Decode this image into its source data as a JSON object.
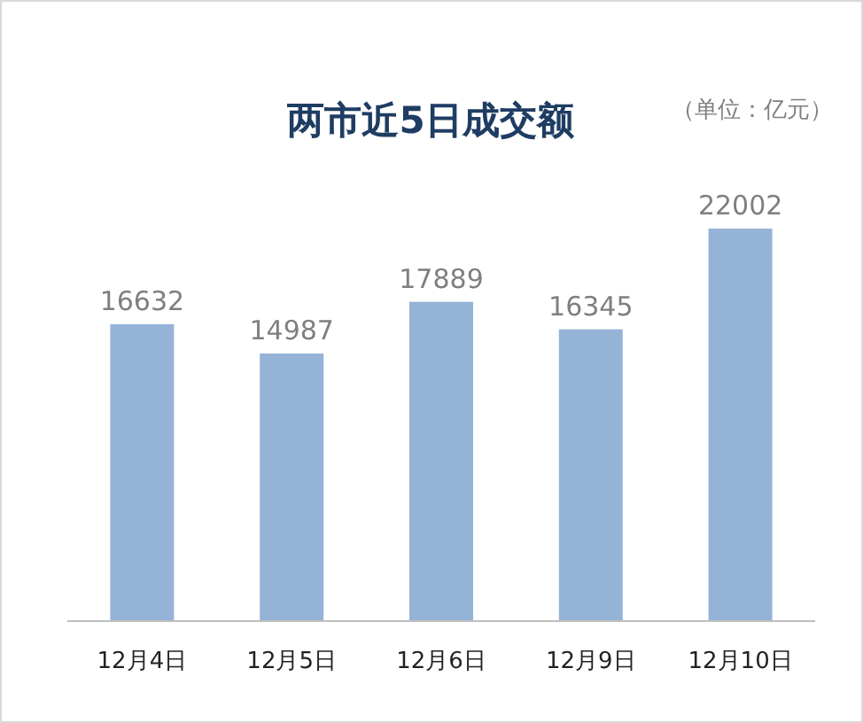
{
  "chart_data": {
    "type": "bar",
    "title": "两市近5日成交额",
    "annotations": [
      "（单位：亿元）"
    ],
    "categories": [
      "12月4日",
      "12月5日",
      "12月6日",
      "12月9日",
      "12月10日"
    ],
    "values": [
      16632,
      14987,
      17889,
      16345,
      22002
    ],
    "color": "#95b3d7",
    "data_labels": true
  }
}
